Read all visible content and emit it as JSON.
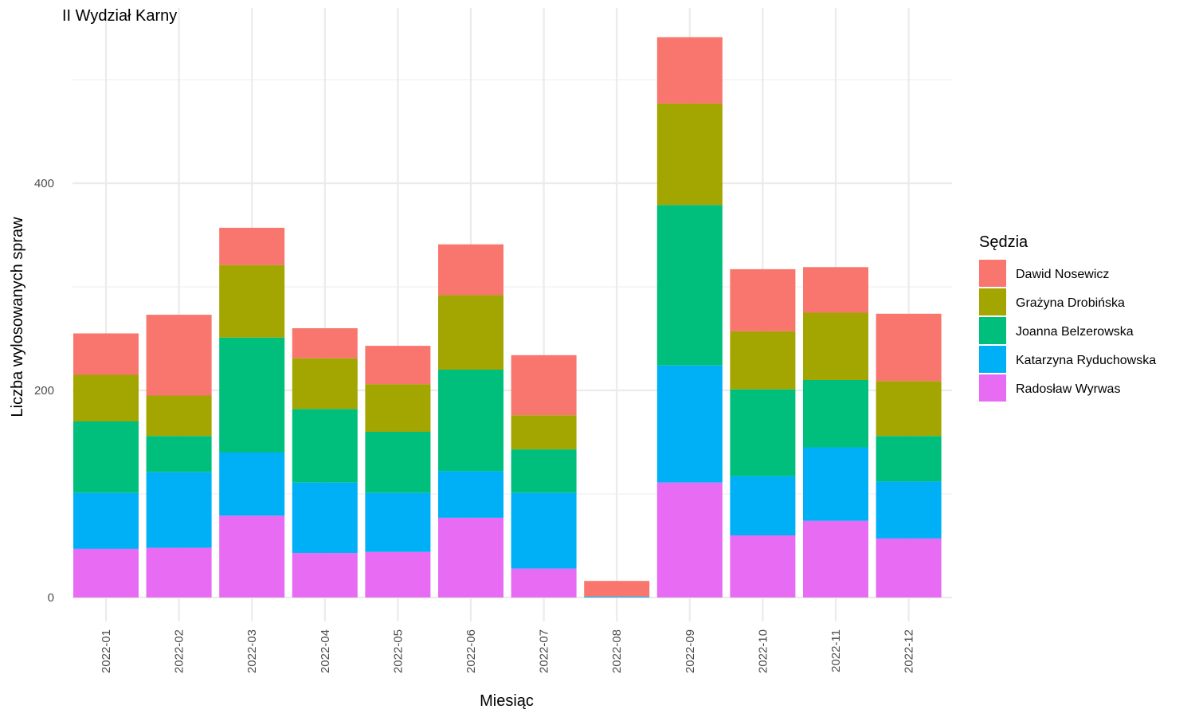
{
  "chart_data": {
    "type": "bar",
    "stacked": true,
    "title": "II Wydział Karny",
    "xlabel": "Miesiąc",
    "ylabel": "Liczba wylosowanych spraw",
    "ylim": [
      0,
      560
    ],
    "yticks": [
      0,
      200,
      400
    ],
    "grid": true,
    "legend_title": "Sędzia",
    "legend_position": "right",
    "categories": [
      "2022-01",
      "2022-02",
      "2022-03",
      "2022-04",
      "2022-05",
      "2022-06",
      "2022-07",
      "2022-08",
      "2022-09",
      "2022-10",
      "2022-11",
      "2022-12"
    ],
    "series": [
      {
        "name": "Dawid Nosewicz",
        "color": "#F8766D",
        "values": [
          40,
          78,
          36,
          29,
          37,
          49,
          58,
          15,
          64,
          60,
          44,
          65
        ]
      },
      {
        "name": "Grażyna Drobińska",
        "color": "#A3A500",
        "values": [
          45,
          39,
          70,
          49,
          46,
          72,
          33,
          0,
          98,
          56,
          65,
          53
        ]
      },
      {
        "name": "Joanna Belzerowska",
        "color": "#00BF7D",
        "values": [
          69,
          35,
          111,
          71,
          59,
          98,
          42,
          0,
          155,
          84,
          65,
          44
        ]
      },
      {
        "name": "Katarzyna Ryduchowska",
        "color": "#00B0F6",
        "values": [
          54,
          73,
          61,
          68,
          57,
          45,
          73,
          1,
          113,
          57,
          71,
          55
        ]
      },
      {
        "name": "Radosław Wyrwas",
        "color": "#E76BF3",
        "values": [
          47,
          48,
          79,
          43,
          44,
          77,
          28,
          0,
          111,
          60,
          74,
          57
        ]
      }
    ]
  }
}
